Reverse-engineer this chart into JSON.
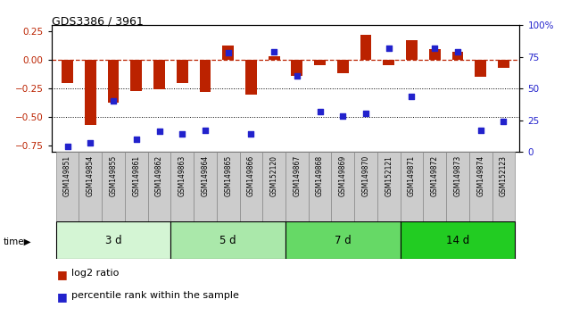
{
  "title": "GDS3386 / 3961",
  "samples": [
    "GSM149851",
    "GSM149854",
    "GSM149855",
    "GSM149861",
    "GSM149862",
    "GSM149863",
    "GSM149864",
    "GSM149865",
    "GSM149866",
    "GSM152120",
    "GSM149867",
    "GSM149868",
    "GSM149869",
    "GSM149870",
    "GSM152121",
    "GSM149871",
    "GSM149872",
    "GSM149873",
    "GSM149874",
    "GSM152123"
  ],
  "log2_ratio": [
    -0.2,
    -0.57,
    -0.37,
    -0.27,
    -0.26,
    -0.2,
    -0.28,
    0.12,
    -0.3,
    0.03,
    -0.14,
    -0.05,
    -0.12,
    0.22,
    -0.05,
    0.17,
    0.09,
    0.07,
    -0.15,
    -0.07
  ],
  "percentile_rank": [
    4,
    7,
    40,
    10,
    16,
    14,
    17,
    78,
    14,
    79,
    60,
    32,
    28,
    30,
    82,
    44,
    82,
    79,
    17,
    24
  ],
  "groups": [
    {
      "label": "3 d",
      "start": 0,
      "end": 5,
      "color": "#d4f5d4"
    },
    {
      "label": "5 d",
      "start": 5,
      "end": 10,
      "color": "#aae8aa"
    },
    {
      "label": "7 d",
      "start": 10,
      "end": 15,
      "color": "#66d966"
    },
    {
      "label": "14 d",
      "start": 15,
      "end": 20,
      "color": "#22cc22"
    }
  ],
  "bar_color": "#bb2200",
  "dot_color": "#2222cc",
  "ylim_left": [
    -0.8,
    0.3
  ],
  "ylim_right": [
    0,
    100
  ],
  "yticks_left": [
    -0.75,
    -0.5,
    -0.25,
    0,
    0.25
  ],
  "yticks_right": [
    0,
    25,
    50,
    75,
    100
  ],
  "hline_color": "#bb2200",
  "dotted_line_color": "black",
  "bg_color": "white",
  "legend_bar_label": "log2 ratio",
  "legend_dot_label": "percentile rank within the sample",
  "time_label": "time",
  "xlabel_bg": "#cccccc",
  "xlabel_border": "#888888"
}
